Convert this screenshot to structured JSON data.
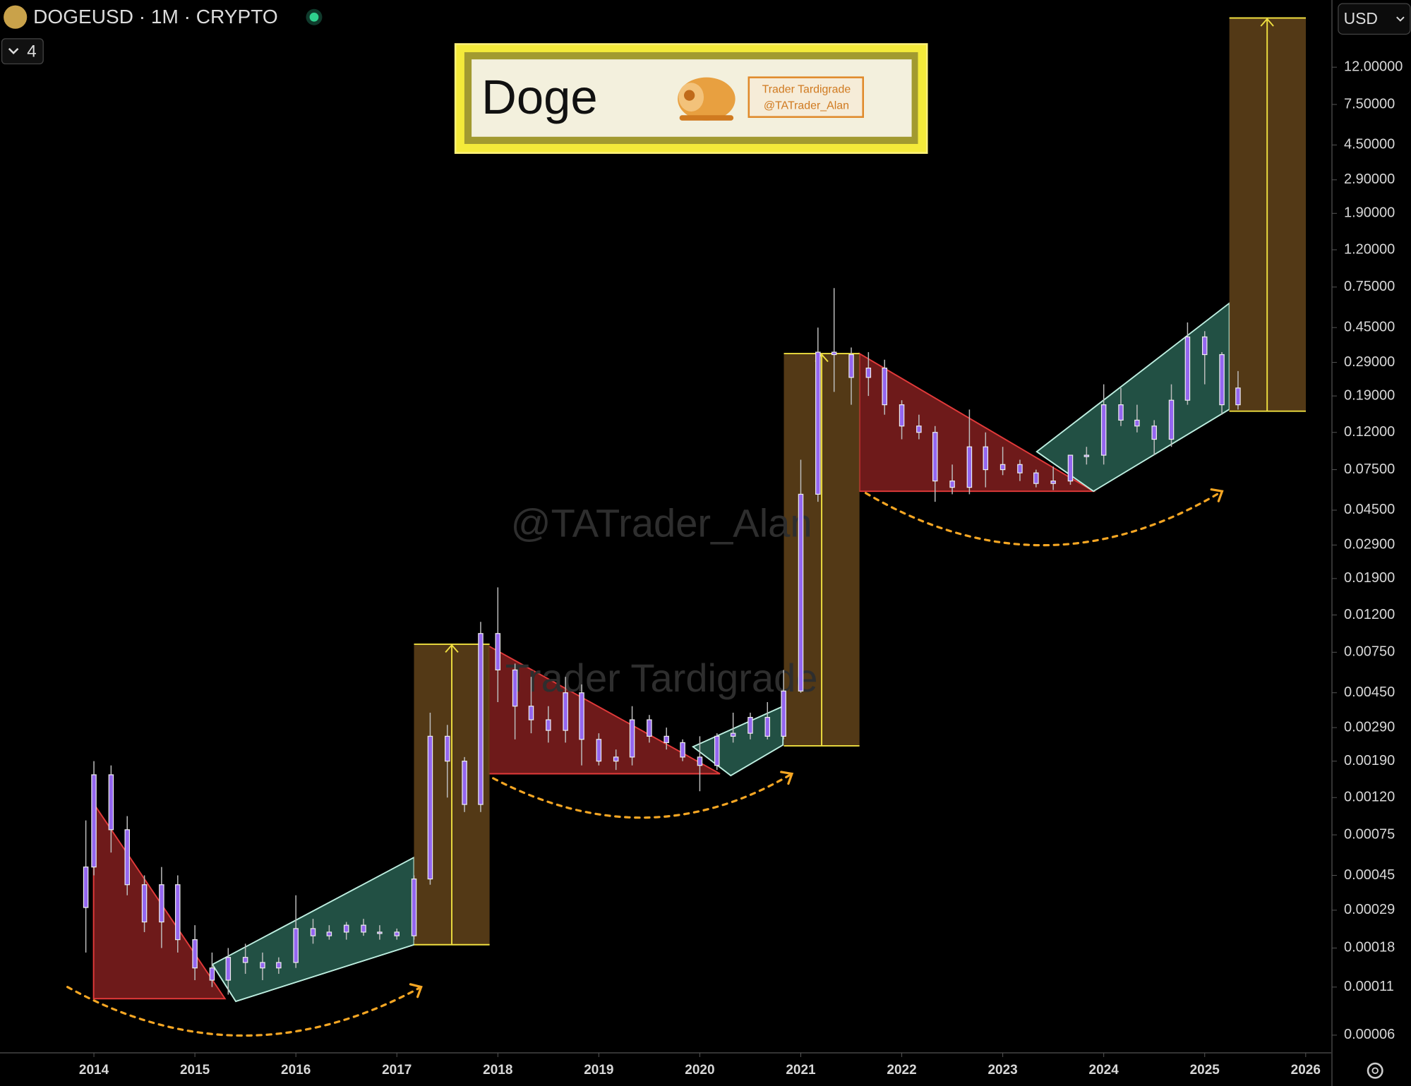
{
  "chart_data": {
    "type": "candlestick",
    "symbol": "DOGEUSD · 1M · CRYPTO",
    "interval_badge": 4,
    "currency": "USD",
    "title": "Doge",
    "logo_text": [
      "Trader Tardigrade",
      "@TATrader_Alan"
    ],
    "watermarks": [
      "@TATrader_Alan",
      "Trader Tardigrade"
    ],
    "log_scale": true,
    "color": "#9466f0",
    "x": [
      2013.92,
      2014.0,
      2014.17,
      2014.33,
      2014.5,
      2014.67,
      2014.83,
      2015.0,
      2015.17,
      2015.33,
      2015.5,
      2015.67,
      2015.83,
      2016.0,
      2016.17,
      2016.33,
      2016.5,
      2016.67,
      2016.83,
      2017.0,
      2017.17,
      2017.33,
      2017.5,
      2017.67,
      2017.83,
      2018.0,
      2018.17,
      2018.33,
      2018.5,
      2018.67,
      2018.83,
      2019.0,
      2019.17,
      2019.33,
      2019.5,
      2019.67,
      2019.83,
      2020.0,
      2020.17,
      2020.33,
      2020.5,
      2020.67,
      2020.83,
      2021.0,
      2021.17,
      2021.33,
      2021.5,
      2021.67,
      2021.83,
      2022.0,
      2022.17,
      2022.33,
      2022.5,
      2022.67,
      2022.83,
      2023.0,
      2023.17,
      2023.33,
      2023.5,
      2023.67,
      2023.83,
      2024.0,
      2024.17,
      2024.33,
      2024.5,
      2024.67,
      2024.83,
      2025.0,
      2025.17,
      2025.33
    ],
    "open": [
      0.0003,
      0.0005,
      0.0016,
      0.0008,
      0.0004,
      0.00025,
      0.0004,
      0.0002,
      0.00014,
      0.00012,
      0.00016,
      0.00015,
      0.00014,
      0.00015,
      0.00023,
      0.00021,
      0.00022,
      0.00024,
      0.00022,
      0.00022,
      0.00021,
      0.00043,
      0.0026,
      0.0019,
      0.0011,
      0.0095,
      0.006,
      0.0038,
      0.0032,
      0.0028,
      0.0045,
      0.0025,
      0.0019,
      0.002,
      0.0032,
      0.0026,
      0.0024,
      0.002,
      0.0018,
      0.0026,
      0.0027,
      0.0033,
      0.0026,
      0.0046,
      0.055,
      0.33,
      0.32,
      0.24,
      0.27,
      0.17,
      0.13,
      0.12,
      0.065,
      0.06,
      0.1,
      0.075,
      0.08,
      0.072,
      0.063,
      0.065,
      0.09,
      0.09,
      0.17,
      0.14,
      0.13,
      0.11,
      0.18,
      0.4,
      0.32,
      0.17
    ],
    "high": [
      0.0009,
      0.0019,
      0.0018,
      0.00095,
      0.00045,
      0.0005,
      0.00045,
      0.00024,
      0.00017,
      0.00018,
      0.00019,
      0.00017,
      0.00016,
      0.00035,
      0.00026,
      0.00024,
      0.00025,
      0.00026,
      0.00024,
      0.00023,
      0.00045,
      0.0035,
      0.003,
      0.002,
      0.011,
      0.017,
      0.0065,
      0.0055,
      0.0038,
      0.0055,
      0.005,
      0.0027,
      0.0022,
      0.0038,
      0.0034,
      0.0029,
      0.0025,
      0.0026,
      0.0027,
      0.0035,
      0.0035,
      0.004,
      0.006,
      0.085,
      0.45,
      0.74,
      0.35,
      0.33,
      0.3,
      0.18,
      0.15,
      0.13,
      0.08,
      0.16,
      0.12,
      0.1,
      0.085,
      0.075,
      0.078,
      0.09,
      0.1,
      0.22,
      0.21,
      0.17,
      0.14,
      0.22,
      0.48,
      0.43,
      0.33,
      0.26
    ],
    "low": [
      0.00017,
      0.00045,
      0.0006,
      0.00035,
      0.00022,
      0.00018,
      0.00017,
      0.00012,
      0.00011,
      0.0001,
      0.00013,
      0.00012,
      0.00013,
      0.00014,
      0.00019,
      0.0002,
      0.0002,
      0.00021,
      0.0002,
      0.0002,
      0.0002,
      0.0004,
      0.0012,
      0.001,
      0.001,
      0.004,
      0.0025,
      0.0027,
      0.0024,
      0.0024,
      0.0018,
      0.0018,
      0.0017,
      0.0018,
      0.0024,
      0.0022,
      0.0019,
      0.0013,
      0.0017,
      0.0024,
      0.0025,
      0.0025,
      0.0025,
      0.0045,
      0.05,
      0.2,
      0.17,
      0.19,
      0.15,
      0.11,
      0.11,
      0.05,
      0.055,
      0.055,
      0.06,
      0.07,
      0.065,
      0.06,
      0.058,
      0.062,
      0.08,
      0.08,
      0.13,
      0.12,
      0.09,
      0.1,
      0.17,
      0.22,
      0.15,
      0.16
    ],
    "close": [
      0.0005,
      0.0016,
      0.0008,
      0.0004,
      0.00025,
      0.0004,
      0.0002,
      0.00014,
      0.00012,
      0.00016,
      0.00015,
      0.00014,
      0.00015,
      0.00023,
      0.00021,
      0.00022,
      0.00024,
      0.00022,
      0.00022,
      0.00021,
      0.00043,
      0.0026,
      0.0019,
      0.0011,
      0.0095,
      0.006,
      0.0038,
      0.0032,
      0.0028,
      0.0045,
      0.0025,
      0.0019,
      0.002,
      0.0032,
      0.0026,
      0.0024,
      0.002,
      0.0018,
      0.0026,
      0.0027,
      0.0033,
      0.0026,
      0.0046,
      0.055,
      0.33,
      0.32,
      0.24,
      0.27,
      0.17,
      0.13,
      0.12,
      0.065,
      0.06,
      0.1,
      0.075,
      0.08,
      0.072,
      0.063,
      0.065,
      0.09,
      0.09,
      0.17,
      0.14,
      0.13,
      0.11,
      0.18,
      0.4,
      0.32,
      0.17,
      0.21
    ],
    "xlim": [
      2013.07,
      2026.26
    ],
    "xticks": [
      2014,
      2015,
      2016,
      2017,
      2018,
      2019,
      2020,
      2021,
      2022,
      2023,
      2024,
      2025,
      2026
    ],
    "ylim": [
      4.8e-05,
      28
    ],
    "yticks": [
      {
        "value": 12,
        "label": "12.00000"
      },
      {
        "value": 7.5,
        "label": "7.50000"
      },
      {
        "value": 4.5,
        "label": "4.50000"
      },
      {
        "value": 2.9,
        "label": "2.90000"
      },
      {
        "value": 1.9,
        "label": "1.90000"
      },
      {
        "value": 1.2,
        "label": "1.20000"
      },
      {
        "value": 0.75,
        "label": "0.75000"
      },
      {
        "value": 0.45,
        "label": "0.45000"
      },
      {
        "value": 0.29,
        "label": "0.29000"
      },
      {
        "value": 0.19,
        "label": "0.19000"
      },
      {
        "value": 0.12,
        "label": "0.12000"
      },
      {
        "value": 0.075,
        "label": "0.07500"
      },
      {
        "value": 0.045,
        "label": "0.04500"
      },
      {
        "value": 0.029,
        "label": "0.02900"
      },
      {
        "value": 0.019,
        "label": "0.01900"
      },
      {
        "value": 0.012,
        "label": "0.01200"
      },
      {
        "value": 0.0075,
        "label": "0.00750"
      },
      {
        "value": 0.0045,
        "label": "0.00450"
      },
      {
        "value": 0.0029,
        "label": "0.00290"
      },
      {
        "value": 0.0019,
        "label": "0.00190"
      },
      {
        "value": 0.0012,
        "label": "0.00120"
      },
      {
        "value": 0.00075,
        "label": "0.00075"
      },
      {
        "value": 0.00045,
        "label": "0.00045"
      },
      {
        "value": 0.00029,
        "label": "0.00029"
      },
      {
        "value": 0.00018,
        "label": "0.00018"
      },
      {
        "value": 0.00011,
        "label": "0.00011"
      },
      {
        "value": 6e-05,
        "label": "0.00006"
      }
    ]
  }
}
